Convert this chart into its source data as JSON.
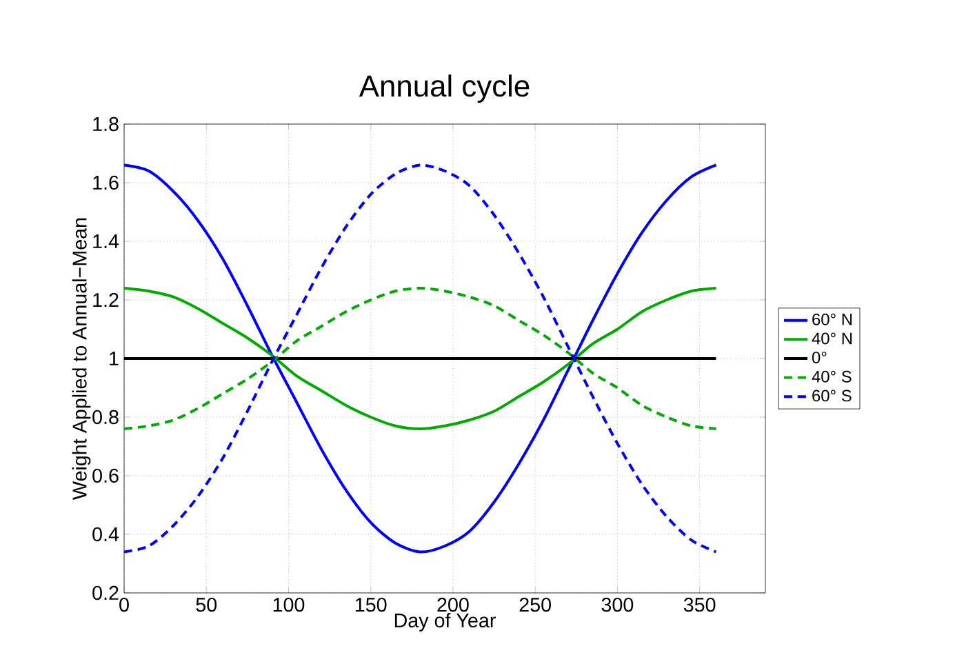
{
  "chart_data": {
    "type": "line",
    "title": "Annual cycle",
    "xlabel": "Day of Year",
    "ylabel": "Weight Applied to Annual−Mean",
    "x": [
      0,
      15,
      30,
      45,
      60,
      75,
      90,
      105,
      120,
      135,
      150,
      165,
      180,
      195,
      210,
      225,
      240,
      255,
      270,
      285,
      300,
      315,
      330,
      345,
      360
    ],
    "series": [
      {
        "name": "60° N",
        "color": "#0000ff",
        "line_style": "solid",
        "values": [
          1.66,
          1.64,
          1.57,
          1.47,
          1.34,
          1.18,
          1.01,
          0.85,
          0.69,
          0.55,
          0.44,
          0.37,
          0.34,
          0.36,
          0.41,
          0.51,
          0.64,
          0.79,
          0.96,
          1.13,
          1.29,
          1.43,
          1.54,
          1.62,
          1.66
        ]
      },
      {
        "name": "40° N",
        "color": "#00aa00",
        "line_style": "solid",
        "values": [
          1.24,
          1.23,
          1.21,
          1.17,
          1.12,
          1.07,
          1.01,
          0.94,
          0.89,
          0.84,
          0.8,
          0.77,
          0.76,
          0.77,
          0.79,
          0.82,
          0.87,
          0.92,
          0.98,
          1.05,
          1.1,
          1.16,
          1.2,
          1.23,
          1.24
        ]
      },
      {
        "name": "0°",
        "color": "#000000",
        "line_style": "solid",
        "values": [
          1,
          1,
          1,
          1,
          1,
          1,
          1,
          1,
          1,
          1,
          1,
          1,
          1,
          1,
          1,
          1,
          1,
          1,
          1,
          1,
          1,
          1,
          1,
          1,
          1
        ]
      },
      {
        "name": "40° S",
        "color": "#00aa00",
        "line_style": "dashed",
        "values": [
          0.76,
          0.77,
          0.79,
          0.83,
          0.88,
          0.93,
          0.99,
          1.06,
          1.11,
          1.16,
          1.2,
          1.23,
          1.24,
          1.23,
          1.21,
          1.18,
          1.13,
          1.08,
          1.02,
          0.95,
          0.9,
          0.84,
          0.8,
          0.77,
          0.76
        ]
      },
      {
        "name": "60° S",
        "color": "#0000ff",
        "line_style": "dashed",
        "values": [
          0.34,
          0.36,
          0.43,
          0.53,
          0.66,
          0.82,
          0.99,
          1.15,
          1.31,
          1.45,
          1.56,
          1.63,
          1.66,
          1.64,
          1.59,
          1.49,
          1.36,
          1.21,
          1.04,
          0.87,
          0.71,
          0.57,
          0.46,
          0.38,
          0.34
        ]
      }
    ],
    "xlim": [
      0,
      390
    ],
    "xticks": [
      0,
      50,
      100,
      150,
      200,
      250,
      300,
      350
    ],
    "ylim": [
      0.2,
      1.8
    ],
    "yticks": [
      0.2,
      0.4,
      0.6,
      0.8,
      1,
      1.2,
      1.4,
      1.6,
      1.8
    ],
    "grid": true,
    "legend": "right",
    "marker": "none"
  }
}
